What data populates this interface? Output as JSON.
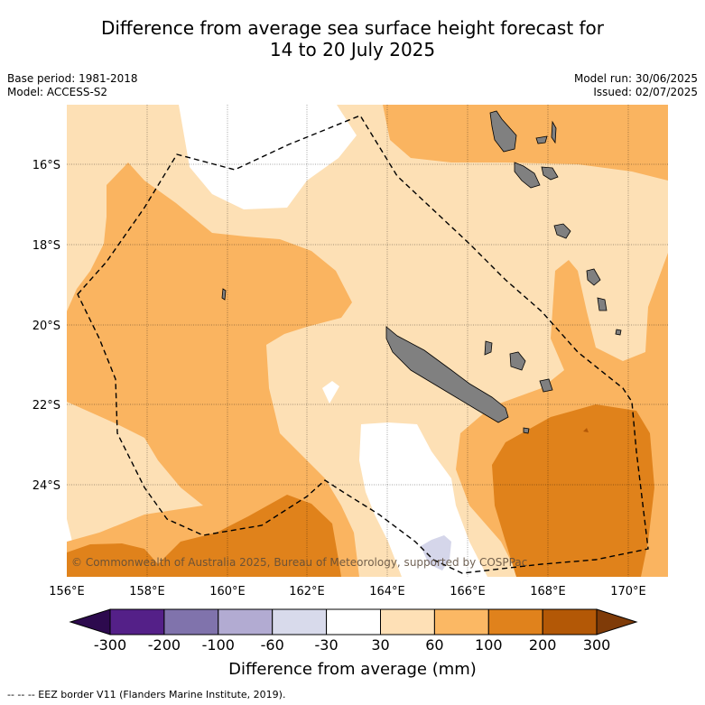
{
  "title_line1": "Difference from average sea surface height forecast for",
  "title_line2": "14 to 20 July 2025",
  "meta": {
    "base_period": "Base period: 1981-2018",
    "model": "Model: ACCESS-S2",
    "model_run": "Model run: 30/06/2025",
    "issued": "Issued: 02/07/2025"
  },
  "map": {
    "lat_labels": [
      "16°S",
      "18°S",
      "20°S",
      "22°S",
      "24°S"
    ],
    "lon_labels": [
      "156°E",
      "158°E",
      "160°E",
      "162°E",
      "164°E",
      "166°E",
      "168°E",
      "170°E"
    ],
    "copyright": "© Commonwealth of Australia 2025, Bureau of Meteorology, supported by COSPPac"
  },
  "colorbar": {
    "ticks": [
      "-300",
      "-200",
      "-100",
      "-60",
      "-30",
      "30",
      "60",
      "100",
      "200",
      "300"
    ],
    "colors": [
      "#2d0a4e",
      "#542088",
      "#8073ac",
      "#b2abd2",
      "#d8daeb",
      "#ffffff",
      "#fee0b6",
      "#fbb864",
      "#e0821c",
      "#b35806",
      "#7f3b08"
    ],
    "label": "Difference from average (mm)"
  },
  "footnote": "--  --  -- EEZ border V11 (Flanders Marine Institute, 2019).",
  "colors": {
    "band_30_60": "#fde0b5",
    "band_60_100": "#fab460",
    "band_100_200": "#e0821b",
    "land": "#808080",
    "negative_light": "#d5d6ea"
  }
}
